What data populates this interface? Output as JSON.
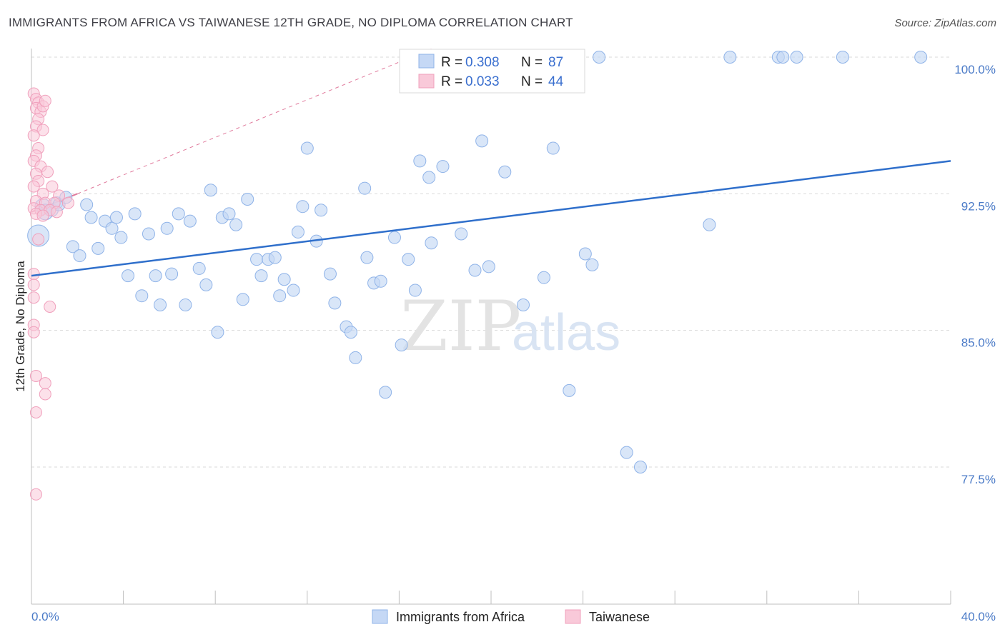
{
  "chart_data": {
    "type": "scatter",
    "title": "IMMIGRANTS FROM AFRICA VS TAIWANESE 12TH GRADE, NO DIPLOMA CORRELATION CHART",
    "source": "Source: ZipAtlas.com",
    "xlabel": "",
    "ylabel": "12th Grade, No Diploma",
    "xlim": [
      0,
      40
    ],
    "ylim": [
      70.0,
      101.5
    ],
    "x_tick_labels": {
      "min": "0.0%",
      "max": "40.0%"
    },
    "y_ticks": [
      {
        "value": 100.0,
        "label": "100.0%"
      },
      {
        "value": 92.5,
        "label": "92.5%"
      },
      {
        "value": 85.0,
        "label": "85.0%"
      },
      {
        "value": 77.5,
        "label": "77.5%"
      }
    ],
    "watermark": {
      "zip": "ZIP",
      "atlas": "atlas"
    },
    "legend": [
      {
        "r_label": "R =",
        "r_value": "0.308",
        "n_label": "N =",
        "n_value": "87"
      },
      {
        "r_label": "R =",
        "r_value": "0.033",
        "n_label": "N =",
        "n_value": "44"
      }
    ],
    "series": [
      {
        "name": "Immigrants from Africa",
        "color": "#8fb3e8",
        "fill": "#c5d8f5",
        "line_color": "#2f6fcb",
        "trend": {
          "x": [
            0,
            40
          ],
          "y": [
            88.0,
            94.3
          ]
        },
        "points": [
          [
            0.3,
            90.2
          ],
          [
            0.5,
            91.8
          ],
          [
            0.6,
            91.5
          ],
          [
            0.9,
            91.6
          ],
          [
            1.1,
            92.0
          ],
          [
            1.2,
            91.9
          ],
          [
            1.5,
            92.3
          ],
          [
            1.8,
            89.6
          ],
          [
            2.1,
            89.1
          ],
          [
            2.4,
            91.9
          ],
          [
            2.6,
            91.2
          ],
          [
            2.9,
            89.5
          ],
          [
            3.2,
            91.0
          ],
          [
            3.5,
            90.6
          ],
          [
            3.7,
            91.2
          ],
          [
            3.9,
            90.1
          ],
          [
            4.2,
            88.0
          ],
          [
            4.5,
            91.4
          ],
          [
            4.8,
            86.9
          ],
          [
            5.1,
            90.3
          ],
          [
            5.4,
            88.0
          ],
          [
            5.6,
            86.4
          ],
          [
            5.9,
            90.6
          ],
          [
            6.1,
            88.1
          ],
          [
            6.4,
            91.4
          ],
          [
            6.7,
            86.4
          ],
          [
            6.9,
            91.0
          ],
          [
            7.3,
            88.4
          ],
          [
            7.6,
            87.5
          ],
          [
            7.8,
            92.7
          ],
          [
            8.1,
            84.9
          ],
          [
            8.3,
            91.2
          ],
          [
            8.6,
            91.4
          ],
          [
            8.9,
            90.8
          ],
          [
            9.2,
            86.7
          ],
          [
            9.4,
            92.2
          ],
          [
            9.8,
            88.9
          ],
          [
            10.0,
            88.0
          ],
          [
            10.3,
            88.9
          ],
          [
            10.6,
            89.0
          ],
          [
            10.8,
            86.9
          ],
          [
            11.0,
            87.8
          ],
          [
            11.4,
            87.2
          ],
          [
            11.6,
            90.4
          ],
          [
            11.8,
            91.8
          ],
          [
            12.0,
            95.0
          ],
          [
            12.4,
            89.9
          ],
          [
            12.6,
            91.6
          ],
          [
            13.0,
            88.1
          ],
          [
            13.2,
            86.5
          ],
          [
            13.7,
            85.2
          ],
          [
            13.9,
            84.9
          ],
          [
            14.1,
            83.5
          ],
          [
            14.5,
            92.8
          ],
          [
            14.6,
            89.0
          ],
          [
            14.9,
            87.6
          ],
          [
            15.2,
            87.7
          ],
          [
            15.4,
            81.6
          ],
          [
            15.8,
            90.1
          ],
          [
            16.1,
            84.2
          ],
          [
            16.4,
            88.9
          ],
          [
            16.7,
            87.2
          ],
          [
            16.9,
            94.3
          ],
          [
            17.3,
            93.4
          ],
          [
            17.4,
            89.8
          ],
          [
            17.9,
            94.0
          ],
          [
            18.7,
            90.3
          ],
          [
            19.3,
            88.3
          ],
          [
            19.6,
            95.4
          ],
          [
            19.9,
            88.5
          ],
          [
            20.6,
            93.7
          ],
          [
            21.4,
            86.4
          ],
          [
            22.3,
            87.9
          ],
          [
            22.7,
            95.0
          ],
          [
            23.4,
            81.7
          ],
          [
            24.1,
            89.2
          ],
          [
            24.4,
            88.6
          ],
          [
            24.7,
            100.0
          ],
          [
            25.9,
            78.3
          ],
          [
            26.5,
            77.5
          ],
          [
            29.5,
            90.8
          ],
          [
            30.4,
            100.0
          ],
          [
            32.5,
            100.0
          ],
          [
            32.7,
            100.0
          ],
          [
            33.3,
            100.0
          ],
          [
            35.3,
            100.0
          ],
          [
            38.7,
            100.0
          ]
        ]
      },
      {
        "name": "Taiwanese",
        "color": "#f0a0bc",
        "fill": "#f9c9d9",
        "line_color": "#e07a9c",
        "trend": {
          "x": [
            0,
            2.0
          ],
          "y": [
            91.5,
            92.5
          ]
        },
        "trend_ext": {
          "x": [
            2.0,
            17.5
          ],
          "y": [
            92.5,
            100.5
          ]
        },
        "points": [
          [
            0.1,
            98.0
          ],
          [
            0.2,
            97.7
          ],
          [
            0.3,
            97.5
          ],
          [
            0.2,
            97.2
          ],
          [
            0.4,
            97.0
          ],
          [
            0.5,
            97.3
          ],
          [
            0.6,
            97.6
          ],
          [
            0.3,
            96.6
          ],
          [
            0.2,
            96.2
          ],
          [
            0.5,
            96.0
          ],
          [
            0.1,
            95.7
          ],
          [
            0.3,
            95.0
          ],
          [
            0.2,
            94.6
          ],
          [
            0.1,
            94.3
          ],
          [
            0.4,
            94.0
          ],
          [
            0.2,
            93.6
          ],
          [
            0.7,
            93.7
          ],
          [
            0.3,
            93.2
          ],
          [
            0.1,
            92.9
          ],
          [
            0.9,
            92.9
          ],
          [
            0.5,
            92.5
          ],
          [
            1.2,
            92.4
          ],
          [
            0.2,
            92.1
          ],
          [
            0.6,
            92.0
          ],
          [
            1.0,
            92.0
          ],
          [
            1.6,
            92.0
          ],
          [
            0.1,
            91.7
          ],
          [
            0.4,
            91.6
          ],
          [
            0.8,
            91.6
          ],
          [
            1.1,
            91.5
          ],
          [
            0.2,
            91.4
          ],
          [
            0.5,
            91.3
          ],
          [
            0.3,
            90.0
          ],
          [
            0.1,
            88.1
          ],
          [
            0.1,
            87.5
          ],
          [
            0.1,
            86.8
          ],
          [
            0.8,
            86.3
          ],
          [
            0.1,
            85.3
          ],
          [
            0.1,
            84.9
          ],
          [
            0.2,
            82.5
          ],
          [
            0.6,
            82.1
          ],
          [
            0.6,
            81.5
          ],
          [
            0.2,
            80.5
          ],
          [
            0.2,
            76.0
          ]
        ]
      }
    ]
  },
  "bottom_legend": {
    "africa": "Immigrants from Africa",
    "taiwanese": "Taiwanese"
  }
}
